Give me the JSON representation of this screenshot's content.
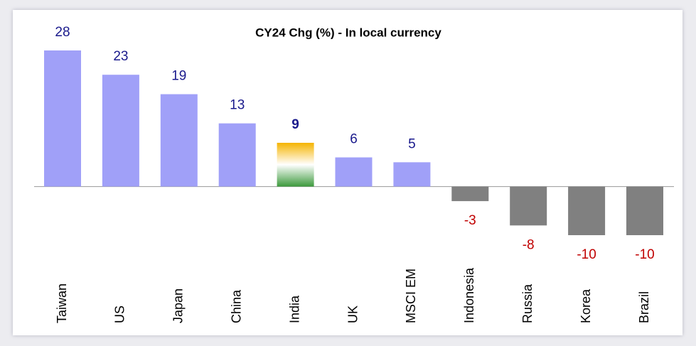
{
  "chart_data": {
    "type": "bar",
    "title": "CY24 Chg (%) - In local currency",
    "categories": [
      "Taiwan",
      "US",
      "Japan",
      "China",
      "India",
      "UK",
      "MSCI EM",
      "Indonesia",
      "Russia",
      "Korea",
      "Brazil"
    ],
    "values": [
      28,
      23,
      19,
      13,
      9,
      6,
      5,
      -3,
      -8,
      -10,
      -10
    ],
    "color_positive": "#a0a0f8",
    "color_negative": "#808080",
    "highlight": "India",
    "highlight_colors": [
      "#f5b400",
      "#ffffff",
      "#3d9a3d"
    ],
    "label_color_positive": "#1a1a8c",
    "label_color_negative": "#c00000"
  }
}
